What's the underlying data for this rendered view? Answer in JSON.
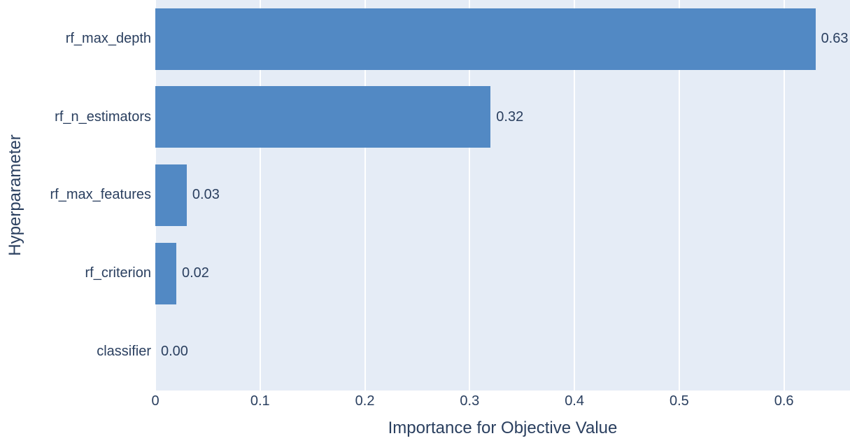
{
  "colors": {
    "bar": "#5289c4",
    "plot_background": "#e5ecf6",
    "gridline": "#ffffff",
    "text": "#2a3f5f",
    "figure_background": "#ffffff"
  },
  "chart_data": {
    "type": "bar",
    "orientation": "horizontal",
    "title": "",
    "xlabel": "Importance for Objective Value",
    "ylabel": "Hyperparameter",
    "categories": [
      "rf_max_depth",
      "rf_n_estimators",
      "rf_max_features",
      "rf_criterion",
      "classifier"
    ],
    "values": [
      0.63,
      0.32,
      0.03,
      0.02,
      0.0
    ],
    "value_labels": [
      "0.63",
      "0.32",
      "0.03",
      "0.02",
      "0.00"
    ],
    "x_ticks": [
      {
        "value": 0.0,
        "label": "0"
      },
      {
        "value": 0.1,
        "label": "0.1"
      },
      {
        "value": 0.2,
        "label": "0.2"
      },
      {
        "value": 0.3,
        "label": "0.3"
      },
      {
        "value": 0.4,
        "label": "0.4"
      },
      {
        "value": 0.5,
        "label": "0.5"
      },
      {
        "value": 0.6,
        "label": "0.6"
      }
    ],
    "xlim": [
      0,
      0.663
    ],
    "grid": true,
    "gridlines_behind_bars": true,
    "legend_position": "none",
    "bar_fraction_of_row": 0.79
  }
}
